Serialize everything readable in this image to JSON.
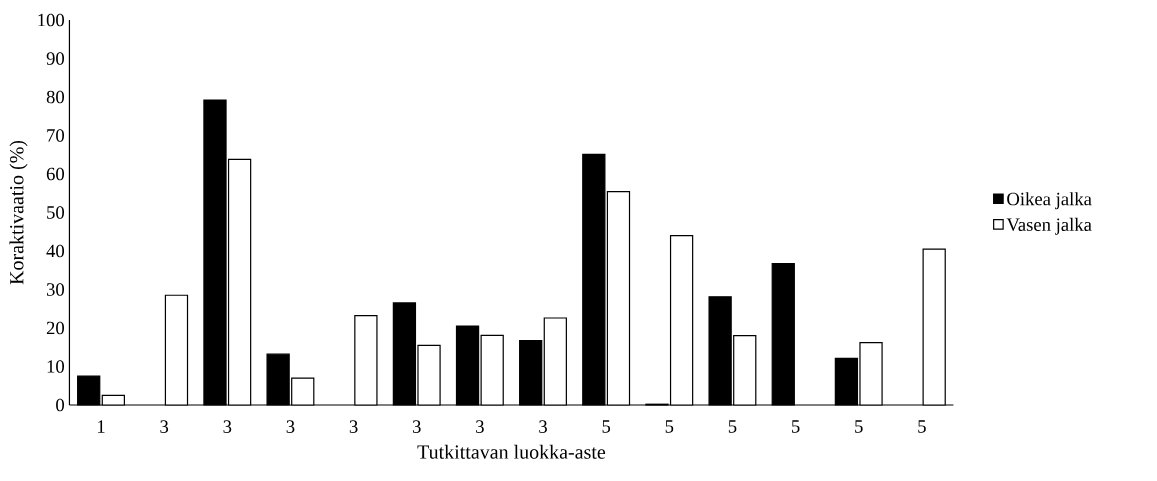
{
  "chart_data": {
    "type": "bar",
    "xlabel": "Tutkittavan luokka-aste",
    "ylabel": "Koraktivaatio (%)",
    "categories": [
      "1",
      "3",
      "3",
      "3",
      "3",
      "3",
      "3",
      "3",
      "5",
      "5",
      "5",
      "5",
      "5",
      "5"
    ],
    "series": [
      {
        "name": "Oikea jalka",
        "color": "#000000",
        "values": [
          7.5,
          null,
          79.2,
          13.2,
          null,
          26.5,
          20.5,
          16.7,
          65.1,
          0.2,
          28.1,
          36.7,
          12.1,
          null
        ]
      },
      {
        "name": "Vasen jalka",
        "color": "#ffffff",
        "values": [
          2.5,
          28.5,
          63.8,
          7.0,
          23.2,
          15.5,
          18.1,
          22.6,
          55.4,
          44.0,
          18.0,
          null,
          16.2,
          40.5
        ]
      }
    ],
    "ylim": [
      0,
      100
    ],
    "yticks": [
      0,
      10,
      20,
      30,
      40,
      50,
      60,
      70,
      80,
      90,
      100
    ],
    "grid": false,
    "legend": "right"
  }
}
